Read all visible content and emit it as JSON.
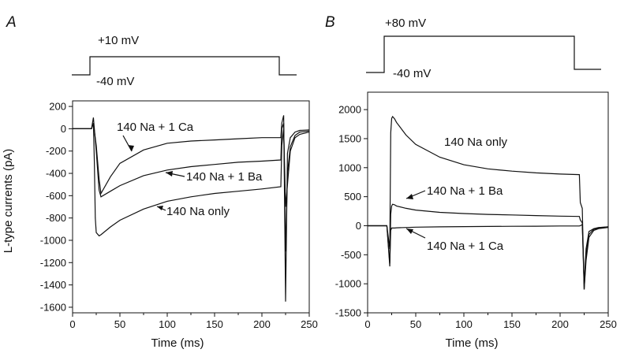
{
  "figure": {
    "panels": [
      {
        "letter": "A",
        "protocol": {
          "hold_label": "-40 mV",
          "step_label": "+10 mV"
        },
        "annotations": [
          {
            "text": "140 Na + 1 Ca",
            "series": "140 Na + 1 Ca"
          },
          {
            "text": "140 Na + 1 Ba",
            "series": "140 Na + 1 Ba"
          },
          {
            "text": "140 Na only",
            "series": "140 Na only"
          }
        ]
      },
      {
        "letter": "B",
        "protocol": {
          "hold_label": "-40 mV",
          "step_label": "+80 mV"
        },
        "annotations": [
          {
            "text": "140 Na only",
            "series": "140 Na only"
          },
          {
            "text": "140 Na + 1 Ba",
            "series": "140 Na + 1 Ba"
          },
          {
            "text": "140 Na + 1 Ca",
            "series": "140 Na + 1 Ca"
          }
        ]
      }
    ]
  },
  "chart_data": [
    {
      "type": "line",
      "panel": "A",
      "xlabel": "Time (ms)",
      "ylabel": "L-type currents (pA)",
      "xlim": [
        0,
        250
      ],
      "ylim": [
        -1650,
        250
      ],
      "xticks": [
        0,
        50,
        100,
        150,
        200,
        250
      ],
      "yticks": [
        200,
        0,
        -200,
        -400,
        -600,
        -800,
        -1000,
        -1200,
        -1400,
        -1600
      ],
      "grid": false,
      "series": [
        {
          "name": "140 Na + 1 Ca",
          "x": [
            0,
            20,
            22,
            25,
            28,
            30,
            40,
            50,
            75,
            100,
            125,
            150,
            175,
            200,
            220,
            221,
            223,
            225,
            227,
            230,
            235,
            240,
            250
          ],
          "y": [
            0,
            0,
            50,
            -150,
            -450,
            -580,
            -430,
            -310,
            -190,
            -130,
            -110,
            -100,
            -90,
            -80,
            -80,
            50,
            120,
            -1550,
            -220,
            -80,
            -30,
            -15,
            -10
          ]
        },
        {
          "name": "140 Na + 1 Ba",
          "x": [
            0,
            20,
            22,
            25,
            28,
            30,
            40,
            50,
            75,
            100,
            125,
            150,
            175,
            200,
            220,
            221,
            223,
            225,
            227,
            230,
            235,
            240,
            250
          ],
          "y": [
            0,
            0,
            100,
            -200,
            -550,
            -610,
            -560,
            -510,
            -420,
            -370,
            -340,
            -320,
            -300,
            -290,
            -280,
            0,
            50,
            -1100,
            -400,
            -160,
            -60,
            -30,
            -20
          ]
        },
        {
          "name": "140 Na only",
          "x": [
            0,
            20,
            22,
            23,
            24,
            25,
            28,
            30,
            40,
            50,
            75,
            100,
            125,
            150,
            175,
            200,
            220,
            221,
            223,
            225,
            227,
            230,
            235,
            240,
            250
          ],
          "y": [
            0,
            0,
            50,
            -300,
            -800,
            -930,
            -960,
            -950,
            -880,
            -820,
            -720,
            -650,
            -610,
            -580,
            -560,
            -540,
            -520,
            -150,
            0,
            -700,
            -500,
            -200,
            -80,
            -50,
            -30
          ]
        }
      ]
    },
    {
      "type": "line",
      "panel": "B",
      "xlabel": "Time (ms)",
      "ylabel": "",
      "xlim": [
        0,
        250
      ],
      "ylim": [
        -1500,
        2300
      ],
      "xticks": [
        0,
        50,
        100,
        150,
        200,
        250
      ],
      "yticks": [
        2000,
        1500,
        1000,
        500,
        0,
        -500,
        -1000,
        -1500
      ],
      "grid": false,
      "series": [
        {
          "name": "140 Na only",
          "x": [
            0,
            20,
            23,
            24,
            25,
            26,
            28,
            30,
            40,
            50,
            75,
            100,
            125,
            150,
            175,
            200,
            220,
            221,
            223,
            225,
            227,
            230,
            235,
            240,
            250
          ],
          "y": [
            0,
            0,
            -400,
            1600,
            1850,
            1880,
            1840,
            1780,
            1560,
            1400,
            1180,
            1050,
            980,
            940,
            910,
            890,
            880,
            400,
            300,
            -1100,
            -600,
            -200,
            -80,
            -50,
            -30
          ]
        },
        {
          "name": "140 Na + 1 Ba",
          "x": [
            0,
            20,
            23,
            24,
            25,
            26,
            28,
            30,
            40,
            50,
            75,
            100,
            125,
            150,
            175,
            200,
            220,
            221,
            223,
            225,
            227,
            230,
            235,
            240,
            250
          ],
          "y": [
            0,
            0,
            -700,
            200,
            340,
            370,
            360,
            340,
            300,
            270,
            230,
            210,
            195,
            185,
            175,
            165,
            160,
            100,
            50,
            -1100,
            -500,
            -150,
            -60,
            -40,
            -20
          ]
        },
        {
          "name": "140 Na + 1 Ca",
          "x": [
            0,
            20,
            23,
            24,
            25,
            26,
            28,
            30,
            40,
            50,
            75,
            100,
            125,
            150,
            175,
            200,
            220,
            221,
            223,
            225,
            227,
            230,
            235,
            240,
            250
          ],
          "y": [
            0,
            0,
            -650,
            -80,
            -40,
            -40,
            -40,
            -35,
            -30,
            -25,
            -20,
            -15,
            -12,
            -10,
            -8,
            -5,
            -5,
            0,
            20,
            -1000,
            -400,
            -100,
            -50,
            -30,
            -20
          ]
        }
      ]
    }
  ]
}
